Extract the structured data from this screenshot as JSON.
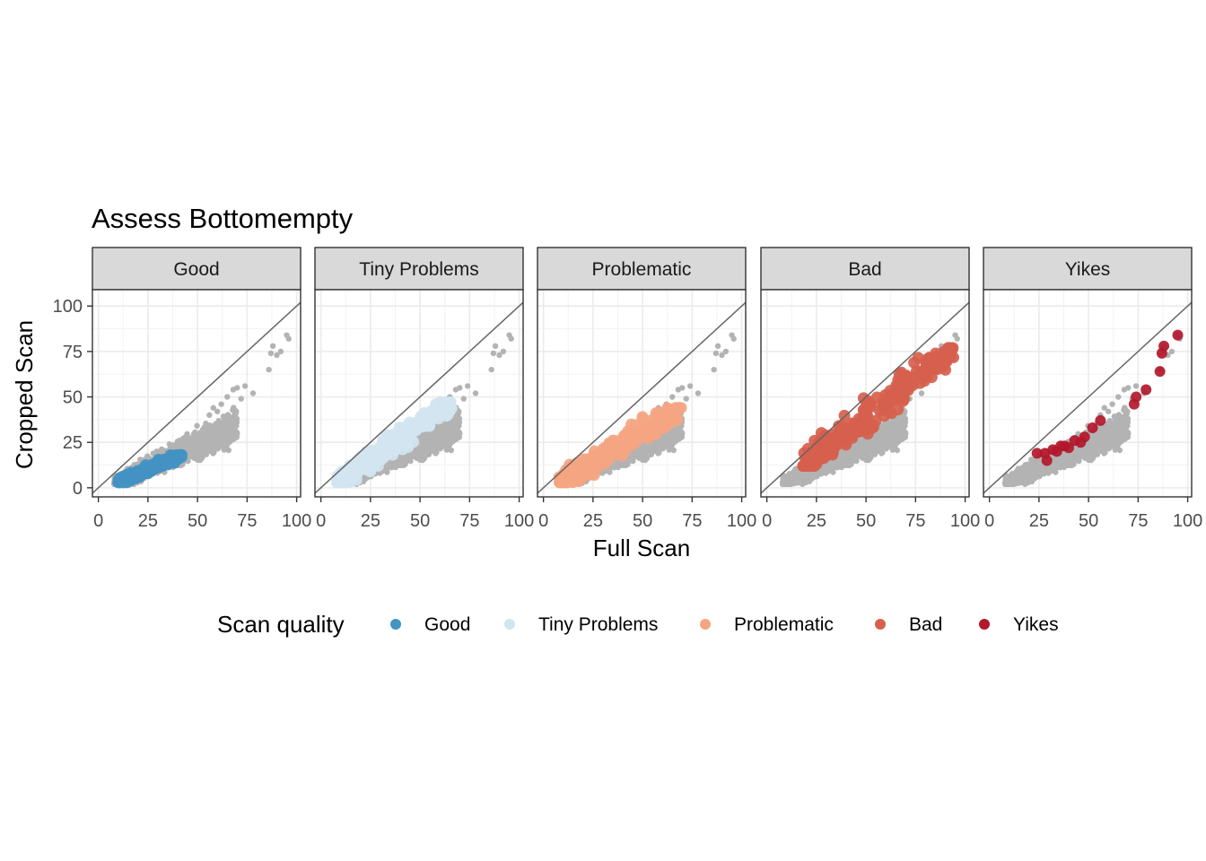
{
  "chart_data": {
    "type": "scatter",
    "title": "Assess Bottomempty",
    "xlabel": "Full Scan",
    "ylabel": "Cropped Scan",
    "xlim": [
      -3,
      102
    ],
    "ylim": [
      -5,
      109
    ],
    "xticks": [
      "0",
      "25",
      "50",
      "75",
      "100"
    ],
    "yticks": [
      "0",
      "25",
      "50",
      "75",
      "100"
    ],
    "grid": true,
    "reference_line": "y = x",
    "legend_title": "Scan quality",
    "legend_position": "bottom",
    "background_series_color": "#b3b3b3",
    "facets": [
      {
        "name": "Good",
        "color": "#4393c3",
        "x_range": [
          10,
          42
        ],
        "y_range": [
          3,
          18
        ]
      },
      {
        "name": "Tiny Problems",
        "color": "#d1e5f0",
        "x_range": [
          8,
          66
        ],
        "y_range": [
          3,
          47
        ]
      },
      {
        "name": "Problematic",
        "color": "#f4a582",
        "x_range": [
          8,
          70
        ],
        "y_range": [
          3,
          44
        ]
      },
      {
        "name": "Bad",
        "color": "#d6604d",
        "x_range": [
          18,
          95
        ],
        "y_range": [
          12,
          77
        ]
      },
      {
        "name": "Yikes",
        "color": "#b2182b",
        "x_range": [
          24,
          96
        ],
        "y_range": [
          14,
          85
        ],
        "points": [
          [
            24,
            19
          ],
          [
            28,
            19
          ],
          [
            29,
            15
          ],
          [
            32,
            21
          ],
          [
            34,
            20
          ],
          [
            36,
            23
          ],
          [
            38,
            23
          ],
          [
            40,
            22
          ],
          [
            43,
            26
          ],
          [
            46,
            25
          ],
          [
            48,
            28
          ],
          [
            52,
            33
          ],
          [
            56,
            37
          ],
          [
            73,
            46
          ],
          [
            74,
            50
          ],
          [
            79,
            54
          ],
          [
            86,
            64
          ],
          [
            87,
            74
          ],
          [
            88,
            78
          ],
          [
            95,
            84
          ]
        ]
      }
    ]
  }
}
